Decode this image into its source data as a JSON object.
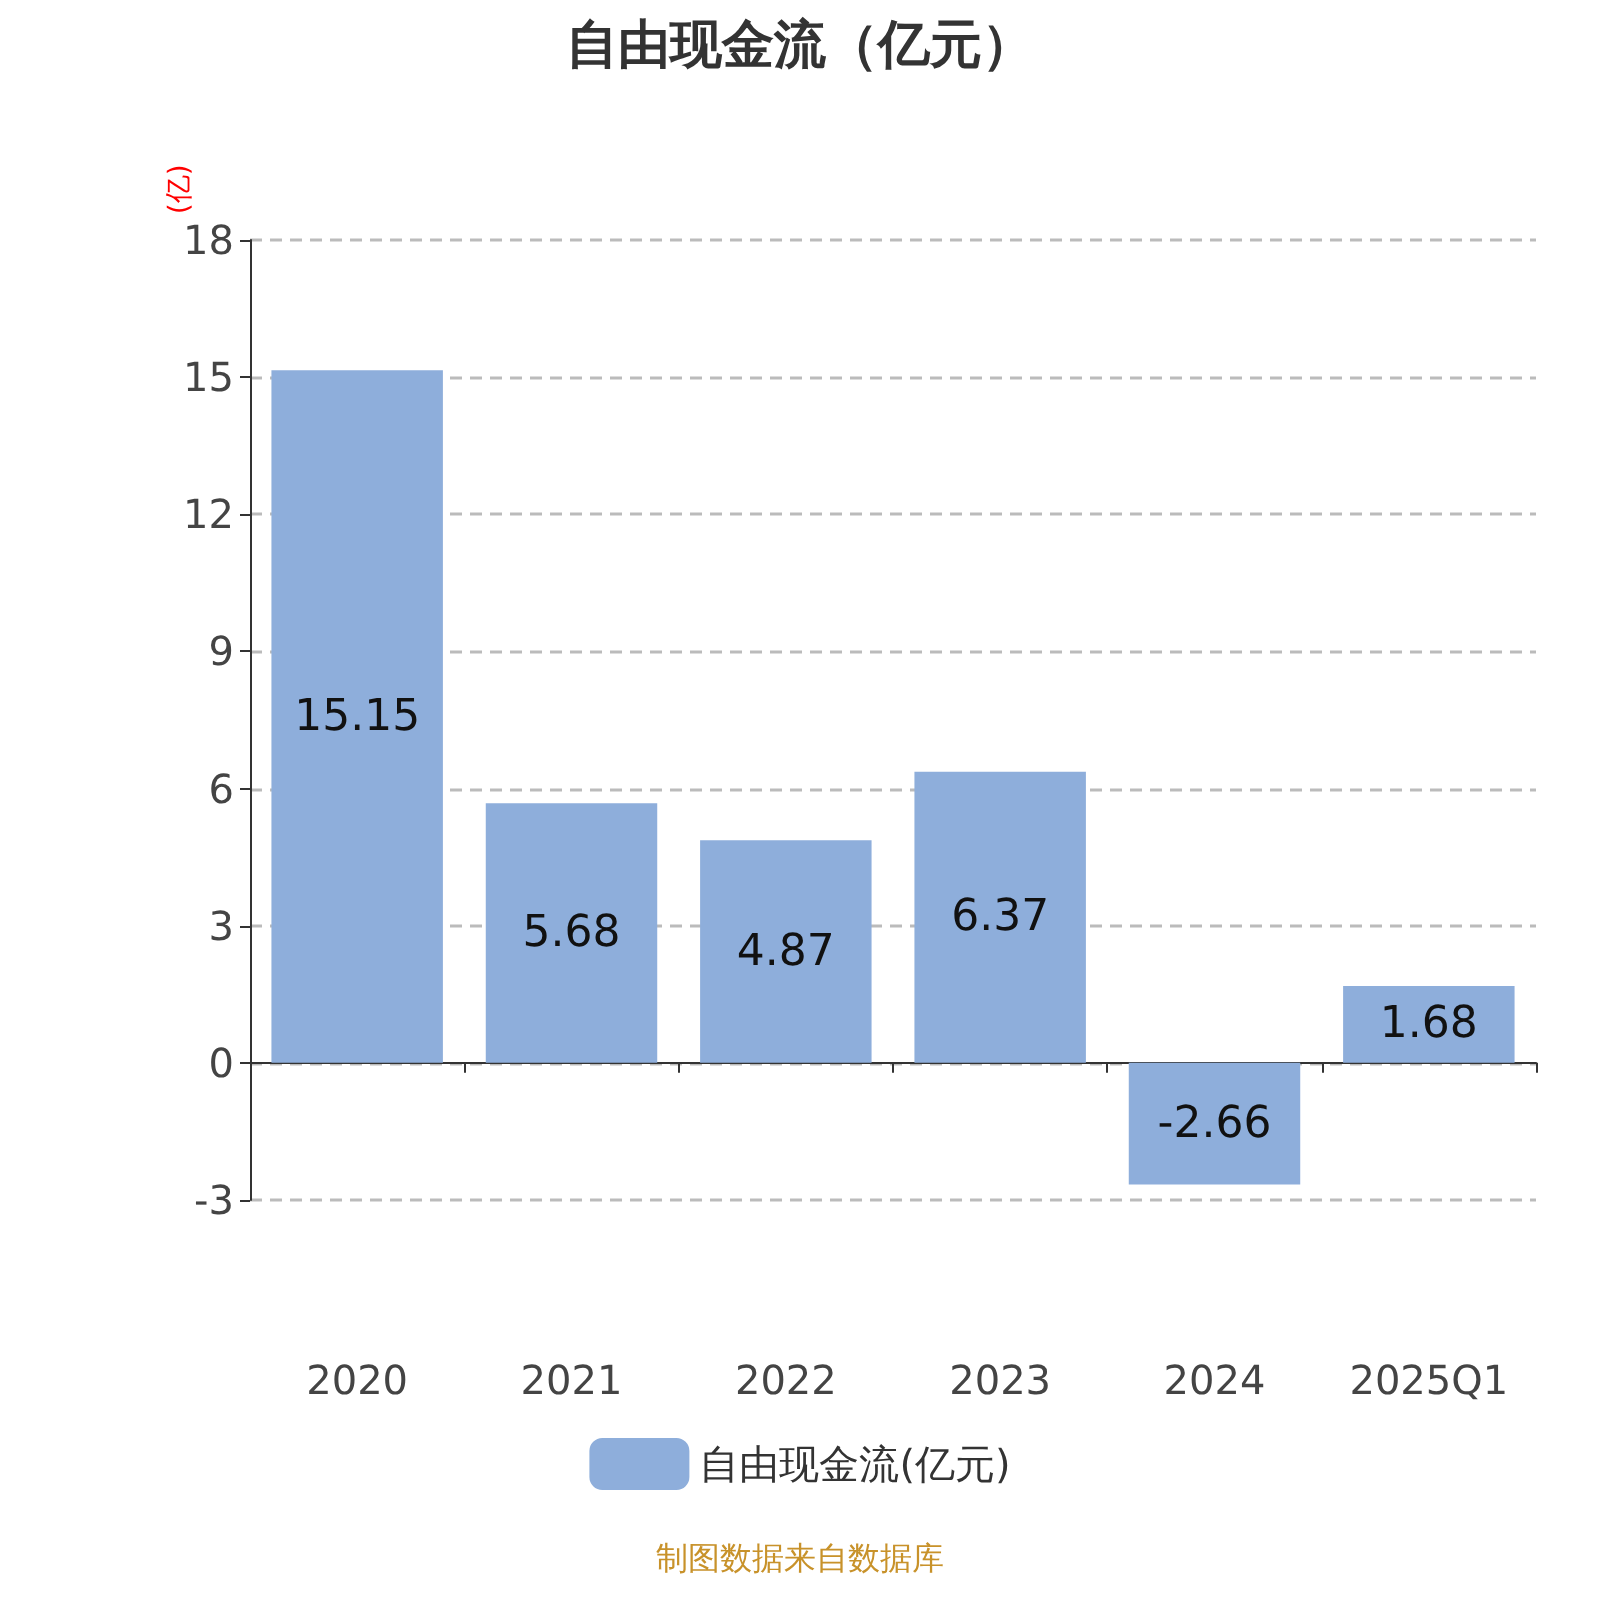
{
  "chart_data": {
    "type": "bar",
    "title": "自由现金流（亿元）",
    "ylabel": "(亿)",
    "categories": [
      "2020",
      "2021",
      "2022",
      "2023",
      "2024",
      "2025Q1"
    ],
    "series": [
      {
        "name": "自由现金流(亿元)",
        "color": "#8eaedb",
        "values": [
          15.15,
          5.68,
          4.87,
          6.37,
          -2.66,
          1.68
        ]
      }
    ],
    "ylim": [
      -3,
      18
    ],
    "yticks": [
      -3,
      0,
      3,
      6,
      9,
      12,
      15,
      18
    ],
    "grid": "y",
    "legend": "bottom",
    "data_labels": true,
    "annotations": [
      "制图数据来自数据库"
    ]
  }
}
